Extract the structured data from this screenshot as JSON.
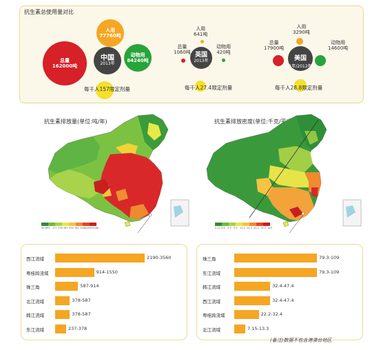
{
  "top_panel": {
    "title": "抗生素总使用量对比",
    "china": {
      "center": "中国",
      "year": "2013年",
      "total_label": "总量",
      "total_value": "162000吨",
      "human_label": "人用",
      "human_value": "77760吨",
      "animal_label": "动物用",
      "animal_value": "84240吨",
      "per_capita": "每千人157限定剂量",
      "colors": {
        "total": "#d72027",
        "human": "#f5a623",
        "animal": "#27a43a",
        "center": "#444444",
        "per_capita": "#f5e02c"
      }
    },
    "uk": {
      "center": "英国",
      "year": "2013年",
      "total_label": "总量",
      "total_value": "1060吨",
      "human_label": "人用",
      "human_value": "641吨",
      "animal_label": "动物用",
      "animal_value": "420吨",
      "per_capita": "每千人27.4限定剂量"
    },
    "us": {
      "center": "美国",
      "year": "2011年/2012年",
      "total_label": "总量",
      "total_value": "17900吨",
      "human_label": "人用",
      "human_value": "3290吨",
      "animal_label": "动物用",
      "animal_value": "14600吨",
      "per_capita": "每千人28.8限定剂量"
    }
  },
  "left_map": {
    "title": "抗生素排放量(单位:吨/年)",
    "legend_colors": [
      "#2e8b3a",
      "#6dbb3e",
      "#a9d34a",
      "#e5e84a",
      "#f6c342",
      "#ef8a2e",
      "#e2472a",
      "#c71f1f"
    ],
    "legend_ticks": [
      "50.6",
      "93",
      "177",
      "278",
      "387",
      "534",
      "761",
      "1168",
      "1990",
      "3168"
    ]
  },
  "right_map": {
    "title": "抗生素排放密度(单位:千克/平方公里·年)",
    "legend_colors": [
      "#2e8b3a",
      "#6dbb3e",
      "#a9d34a",
      "#e5e84a",
      "#f6c342",
      "#ef8a2e",
      "#e2472a",
      "#c71f1f"
    ],
    "legend_ticks": [
      "2.22",
      "3.8",
      "5.9",
      "9.0",
      "13.2",
      "22.5",
      "41.2",
      "79.3",
      "109"
    ]
  },
  "left_bars": {
    "rows": [
      {
        "label": "西江流域",
        "value": "2190-3560",
        "upper": 3560
      },
      {
        "label": "粤桂跨流域",
        "value": "914-1550",
        "upper": 1550
      },
      {
        "label": "珠三角",
        "value": "587-914",
        "upper": 914
      },
      {
        "label": "北江流域",
        "value": "378-587",
        "upper": 587
      },
      {
        "label": "韩江流域",
        "value": "378-587",
        "upper": 587
      },
      {
        "label": "东江流域",
        "value": "237-378",
        "upper": 378
      }
    ],
    "max": 3560
  },
  "right_bars": {
    "rows": [
      {
        "label": "珠三角",
        "value": "79.3-109",
        "upper": 109
      },
      {
        "label": "东江流域",
        "value": "79.3-109",
        "upper": 109
      },
      {
        "label": "韩江流域",
        "value": "32.4-47.4",
        "upper": 47.4
      },
      {
        "label": "西江流域",
        "value": "32.4-47.4",
        "upper": 47.4
      },
      {
        "label": "粤桂跨流域",
        "value": "22.2-32.4",
        "upper": 32.4
      },
      {
        "label": "北江流域",
        "value": "7.15-13.3",
        "upper": 13.3
      }
    ],
    "max": 109
  },
  "footnote": "(备注)数据不包含港澳台地区"
}
